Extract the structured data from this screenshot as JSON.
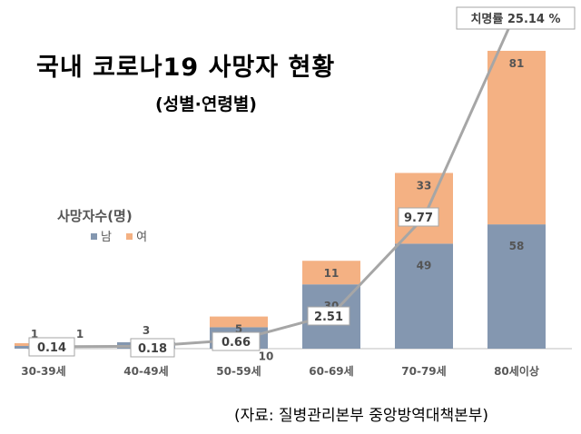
{
  "title": "국내 코로나19 사망자 현황",
  "subtitle": "(성별·연령별)",
  "legend": {
    "title": "사망자수(명)",
    "items": [
      {
        "label": "남",
        "color": "#8497b0"
      },
      {
        "label": "여",
        "color": "#f4b183"
      }
    ]
  },
  "source": "(자료: 질병관리본부 중앙방역대책본부)",
  "chart_data": {
    "type": "bar",
    "stacked": true,
    "categories": [
      "30-39세",
      "40-49세",
      "50-59세",
      "60-69세",
      "70-79세",
      "80세이상"
    ],
    "series": [
      {
        "name": "남",
        "values": [
          1,
          3,
          10,
          30,
          49,
          58
        ],
        "color": "#8497b0"
      },
      {
        "name": "여",
        "values": [
          1,
          0,
          5,
          11,
          33,
          81
        ],
        "color": "#f4b183"
      }
    ],
    "line": {
      "name": "치명률",
      "values": [
        0.14,
        0.18,
        0.66,
        2.51,
        9.77,
        25.14
      ],
      "labels": [
        "0.14",
        "0.18",
        "0.66",
        "2.51",
        "9.77",
        "치명률 25.14 %"
      ],
      "color": "#a6a6a6"
    }
  }
}
